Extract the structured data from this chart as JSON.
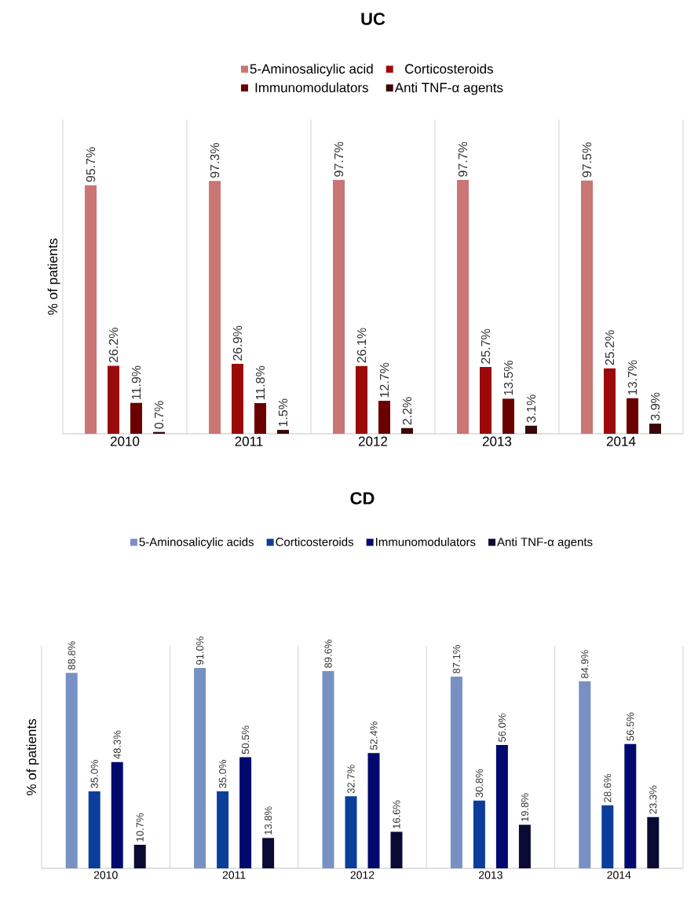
{
  "chart_data": [
    {
      "type": "bar",
      "title": "UC",
      "ylabel": "% of patients",
      "categories": [
        "2010",
        "2011",
        "2012",
        "2013",
        "2014"
      ],
      "ylim": [
        0,
        121
      ],
      "legend": "top",
      "grid": "x",
      "series": [
        {
          "name": "5-Aminosalicylic acid",
          "color": "#c97674",
          "values": [
            95.7,
            97.3,
            97.7,
            97.7,
            97.5
          ],
          "value_labels": [
            "95.7%",
            "97.3%",
            "97.7%",
            "97.7%",
            "97.5%"
          ]
        },
        {
          "name": "Corticosteroids",
          "color": "#9b0a0a",
          "values": [
            26.2,
            26.9,
            26.1,
            25.7,
            25.2
          ],
          "value_labels": [
            "26.2%",
            "26.9%",
            "26.1%",
            "25.7%",
            "25.2%"
          ]
        },
        {
          "name": "Immunomodulators",
          "color": "#6a0000",
          "values": [
            11.9,
            11.8,
            12.7,
            13.5,
            13.7
          ],
          "value_labels": [
            "11.9%",
            "11.8%",
            "12.7%",
            "13.5%",
            "13.7%"
          ]
        },
        {
          "name": "Anti TNF-α agents",
          "color": "#3b0707",
          "values": [
            0.7,
            1.5,
            2.2,
            3.1,
            3.9
          ],
          "value_labels": [
            "0.7%",
            "1.5%",
            "2.2%",
            "3.1%",
            "3.9%"
          ]
        }
      ]
    },
    {
      "type": "bar",
      "title": "CD",
      "ylabel": "% of patients",
      "categories": [
        "2010",
        "2011",
        "2012",
        "2013",
        "2014"
      ],
      "ylim": [
        0,
        101
      ],
      "legend": "top",
      "grid": "x",
      "series": [
        {
          "name": "5-Aminosalicylic acids",
          "color": "#7891c4",
          "values": [
            88.8,
            91.0,
            89.6,
            87.1,
            84.9
          ],
          "value_labels": [
            "88.8%",
            "91.0%",
            "89.6%",
            "87.1%",
            "84.9%"
          ]
        },
        {
          "name": "Corticosteroids",
          "color": "#0a3e9a",
          "values": [
            35.0,
            35.0,
            32.7,
            30.8,
            28.6
          ],
          "value_labels": [
            "35.0%",
            "35.0%",
            "32.7%",
            "30.8%",
            "28.6%"
          ]
        },
        {
          "name": "Immunomodulators",
          "color": "#000a6e",
          "values": [
            48.3,
            50.5,
            52.4,
            56.0,
            56.5
          ],
          "value_labels": [
            "48.3%",
            "50.5%",
            "52.4%",
            "56.0%",
            "56.5%"
          ]
        },
        {
          "name": "Anti TNF-α agents",
          "color": "#0a0a35",
          "values": [
            10.7,
            13.8,
            16.6,
            19.8,
            23.3
          ],
          "value_labels": [
            "10.7%",
            "13.8%",
            "16.6%",
            "19.8%",
            "23.3%"
          ]
        }
      ]
    }
  ]
}
